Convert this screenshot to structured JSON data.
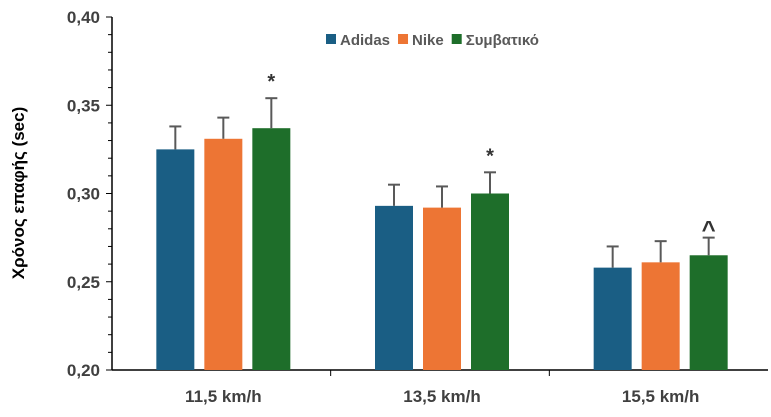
{
  "chart_data": {
    "type": "bar",
    "title": "",
    "xlabel": "",
    "ylabel": "Χρόνος επαφής (sec)",
    "ylim": [
      0.2,
      0.4
    ],
    "yticks": [
      "0,20",
      "0,25",
      "0,30",
      "0,35",
      "0,40"
    ],
    "categories": [
      "11,5 km/h",
      "13,5 km/h",
      "15,5 km/h"
    ],
    "legend_position": "top-center",
    "series": [
      {
        "name": "Adidas",
        "color": "#1a5e84",
        "values": [
          0.325,
          0.293,
          0.258
        ],
        "errors": [
          0.013,
          0.012,
          0.012
        ]
      },
      {
        "name": "Nike",
        "color": "#ed7534",
        "values": [
          0.331,
          0.292,
          0.261
        ],
        "errors": [
          0.012,
          0.012,
          0.012
        ]
      },
      {
        "name": "Συμβατικό",
        "color": "#1e6e2a",
        "values": [
          0.337,
          0.3,
          0.265
        ],
        "errors": [
          0.017,
          0.012,
          0.01
        ]
      }
    ],
    "annotations": [
      {
        "category": 0,
        "series": 2,
        "text": "*"
      },
      {
        "category": 1,
        "series": 2,
        "text": "*"
      },
      {
        "category": 2,
        "series": 2,
        "text": "^"
      }
    ]
  }
}
